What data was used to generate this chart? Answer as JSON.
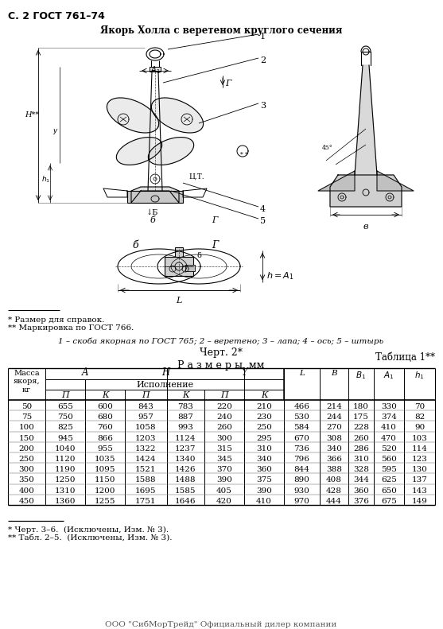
{
  "page_header": "С. 2 ГОСТ 761–74",
  "drawing_title": "Якорь Холла с веретеном круглого сечения",
  "drawing_caption": "Черт. 2*",
  "footnote1": "* Размер для справок.",
  "footnote2": "** Маркировка по ГОСТ 766.",
  "parts_label": "1 – скоба якорная по ГОСТ 765; 2 – веретено; 3 – лапа; 4 – ось; 5 – штырь",
  "table_title": "Таблица 1**",
  "sizes_label": "Р а з м е р ы, мм",
  "footer1": "* Черт. 3–6.  (Исключены, Изм. № 3).",
  "footer2": "** Табл. 2–5.  (Исключены, Изм. № 3).",
  "watermark": "ООО \"СибМорТрейд\" Официальный дилер компании",
  "table_data": [
    [
      50,
      655,
      600,
      843,
      783,
      220,
      210,
      466,
      214,
      180,
      330,
      70
    ],
    [
      75,
      750,
      680,
      957,
      887,
      240,
      230,
      530,
      244,
      175,
      374,
      82
    ],
    [
      100,
      825,
      760,
      1058,
      993,
      260,
      250,
      584,
      270,
      228,
      410,
      90
    ],
    [
      150,
      945,
      866,
      1203,
      1124,
      300,
      295,
      670,
      308,
      260,
      470,
      103
    ],
    [
      200,
      1040,
      955,
      1322,
      1237,
      315,
      310,
      736,
      340,
      286,
      520,
      114
    ],
    [
      250,
      1120,
      1035,
      1424,
      1340,
      345,
      340,
      796,
      366,
      310,
      560,
      123
    ],
    [
      300,
      1190,
      1095,
      1521,
      1426,
      370,
      360,
      844,
      388,
      328,
      595,
      130
    ],
    [
      350,
      1250,
      1150,
      1588,
      1488,
      390,
      375,
      890,
      408,
      344,
      625,
      137
    ],
    [
      400,
      1310,
      1200,
      1695,
      1585,
      405,
      390,
      930,
      428,
      360,
      650,
      143
    ],
    [
      450,
      1360,
      1255,
      1751,
      1646,
      420,
      410,
      970,
      444,
      376,
      675,
      149
    ]
  ],
  "bg_color": "#ffffff"
}
